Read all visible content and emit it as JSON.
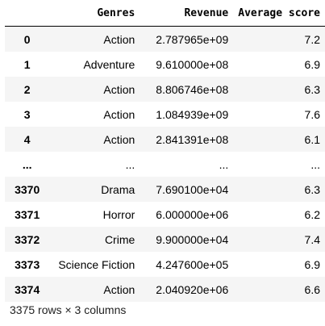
{
  "table": {
    "columns": [
      "Genres",
      "Revenue",
      "Average score"
    ],
    "rows": [
      {
        "index": "0",
        "genre": "Action",
        "revenue": "2.787965e+09",
        "score": "7.2"
      },
      {
        "index": "1",
        "genre": "Adventure",
        "revenue": "9.610000e+08",
        "score": "6.9"
      },
      {
        "index": "2",
        "genre": "Action",
        "revenue": "8.806746e+08",
        "score": "6.3"
      },
      {
        "index": "3",
        "genre": "Action",
        "revenue": "1.084939e+09",
        "score": "7.6"
      },
      {
        "index": "4",
        "genre": "Action",
        "revenue": "2.841391e+08",
        "score": "6.1"
      },
      {
        "index": "...",
        "genre": "...",
        "revenue": "...",
        "score": "..."
      },
      {
        "index": "3370",
        "genre": "Drama",
        "revenue": "7.690100e+04",
        "score": "6.3"
      },
      {
        "index": "3371",
        "genre": "Horror",
        "revenue": "6.000000e+06",
        "score": "6.2"
      },
      {
        "index": "3372",
        "genre": "Crime",
        "revenue": "9.900000e+04",
        "score": "7.4"
      },
      {
        "index": "3373",
        "genre": "Science Fiction",
        "revenue": "4.247600e+05",
        "score": "6.9"
      },
      {
        "index": "3374",
        "genre": "Action",
        "revenue": "2.040920e+06",
        "score": "6.6"
      }
    ]
  },
  "footer": "3375 rows × 3 columns"
}
